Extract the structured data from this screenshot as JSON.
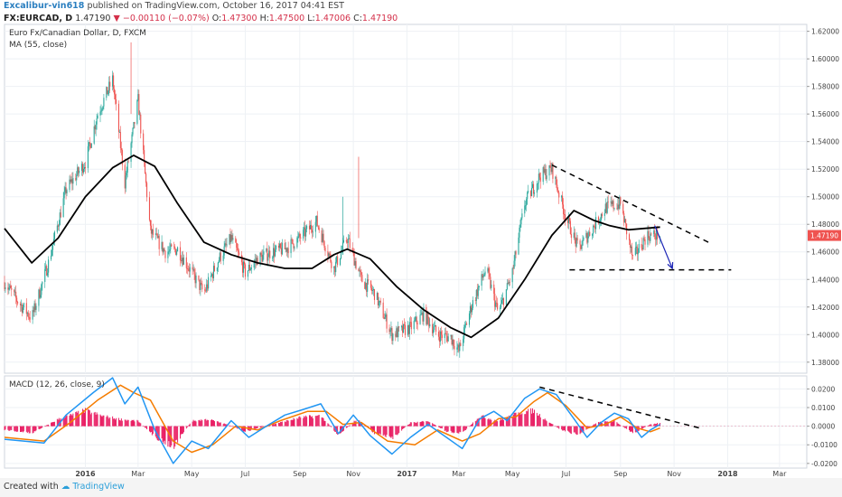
{
  "header": {
    "author": "Excalibur-vin618",
    "published_text": "published on TradingView.com, October 16, 2017 04:41 EST",
    "symbol": "FX:EURCAD, D",
    "last": "1.47190",
    "change_arrow": "▼",
    "change": "−0.00110 (−0.07%)",
    "o_label": "O:",
    "o_value": "1.47300",
    "h_label": "H:",
    "h_value": "1.47500",
    "l_label": "L:",
    "l_value": "1.47006",
    "c_label": "C:",
    "c_value": "1.47190"
  },
  "footer": {
    "created_with": "Created with",
    "brand": "TradingView"
  },
  "colors": {
    "up": "#26a69a",
    "down": "#ef5350",
    "ma": "#000000",
    "macd": "#2196f3",
    "signal": "#f57c00",
    "hist": "#e91e63",
    "price_tag": "#ef5350",
    "arrow": "#1a23b5"
  },
  "chart_data": [
    {
      "type": "candlestick",
      "title": "Euro Fx/Canadian Dollar, D, FXCM",
      "indicator_label": "MA (55, close)",
      "last_price_label": "1.47190",
      "ylim": [
        1.372,
        1.625
      ],
      "y_ticks": [
        "1.62000",
        "1.60000",
        "1.58000",
        "1.56000",
        "1.54000",
        "1.52000",
        "1.50000",
        "1.48000",
        "1.46000",
        "1.44000",
        "1.42000",
        "1.40000",
        "1.38000"
      ],
      "x_ticks": [
        "2016",
        "Mar",
        "May",
        "Jul",
        "Sep",
        "Nov",
        "2017",
        "Mar",
        "May",
        "Jul",
        "Sep",
        "Nov",
        "2018",
        "Mar"
      ],
      "price_path": [
        [
          "2015-10-01",
          1.438
        ],
        [
          "2015-10-15",
          1.425
        ],
        [
          "2015-11-01",
          1.412
        ],
        [
          "2015-11-20",
          1.452
        ],
        [
          "2015-12-10",
          1.505
        ],
        [
          "2016-01-01",
          1.525
        ],
        [
          "2016-01-15",
          1.56
        ],
        [
          "2016-02-01",
          1.585
        ],
        [
          "2016-02-15",
          1.51
        ],
        [
          "2016-03-01",
          1.57
        ],
        [
          "2016-03-15",
          1.475
        ],
        [
          "2016-04-01",
          1.46
        ],
        [
          "2016-04-15",
          1.462
        ],
        [
          "2016-05-01",
          1.445
        ],
        [
          "2016-05-15",
          1.43
        ],
        [
          "2016-06-01",
          1.455
        ],
        [
          "2016-06-15",
          1.47
        ],
        [
          "2016-07-01",
          1.445
        ],
        [
          "2016-07-15",
          1.455
        ],
        [
          "2016-08-01",
          1.46
        ],
        [
          "2016-08-15",
          1.462
        ],
        [
          "2016-09-01",
          1.47
        ],
        [
          "2016-09-20",
          1.482
        ],
        [
          "2016-10-10",
          1.448
        ],
        [
          "2016-10-25",
          1.47
        ],
        [
          "2016-11-10",
          1.44
        ],
        [
          "2016-11-25",
          1.43
        ],
        [
          "2016-12-15",
          1.4
        ],
        [
          "2017-01-05",
          1.405
        ],
        [
          "2017-01-20",
          1.415
        ],
        [
          "2017-02-05",
          1.4
        ],
        [
          "2017-02-20",
          1.398
        ],
        [
          "2017-03-01",
          1.388
        ],
        [
          "2017-03-15",
          1.42
        ],
        [
          "2017-04-01",
          1.448
        ],
        [
          "2017-04-15",
          1.415
        ],
        [
          "2017-05-01",
          1.445
        ],
        [
          "2017-05-15",
          1.495
        ],
        [
          "2017-06-01",
          1.515
        ],
        [
          "2017-06-15",
          1.52
        ],
        [
          "2017-07-01",
          1.485
        ],
        [
          "2017-07-15",
          1.462
        ],
        [
          "2017-08-01",
          1.478
        ],
        [
          "2017-08-15",
          1.492
        ],
        [
          "2017-09-01",
          1.495
        ],
        [
          "2017-09-15",
          1.455
        ],
        [
          "2017-10-01",
          1.472
        ],
        [
          "2017-10-16",
          1.4719
        ]
      ],
      "ma_path": [
        [
          "2015-10-01",
          1.477
        ],
        [
          "2015-11-01",
          1.452
        ],
        [
          "2015-12-01",
          1.47
        ],
        [
          "2016-01-01",
          1.5
        ],
        [
          "2016-02-01",
          1.521
        ],
        [
          "2016-02-25",
          1.53
        ],
        [
          "2016-03-20",
          1.522
        ],
        [
          "2016-04-15",
          1.495
        ],
        [
          "2016-05-15",
          1.467
        ],
        [
          "2016-06-15",
          1.458
        ],
        [
          "2016-07-15",
          1.452
        ],
        [
          "2016-08-15",
          1.448
        ],
        [
          "2016-09-15",
          1.448
        ],
        [
          "2016-10-10",
          1.458
        ],
        [
          "2016-10-25",
          1.462
        ],
        [
          "2016-11-20",
          1.455
        ],
        [
          "2016-12-20",
          1.435
        ],
        [
          "2017-01-20",
          1.418
        ],
        [
          "2017-02-20",
          1.405
        ],
        [
          "2017-03-15",
          1.398
        ],
        [
          "2017-04-15",
          1.412
        ],
        [
          "2017-05-15",
          1.44
        ],
        [
          "2017-06-15",
          1.472
        ],
        [
          "2017-07-10",
          1.49
        ],
        [
          "2017-08-01",
          1.483
        ],
        [
          "2017-08-20",
          1.479
        ],
        [
          "2017-09-10",
          1.476
        ],
        [
          "2017-10-16",
          1.478
        ]
      ],
      "annotations": {
        "resistance_line": [
          [
            "2017-06-15",
            1.523
          ],
          [
            "2017-12-10",
            1.467
          ]
        ],
        "support_line": [
          [
            "2017-07-05",
            1.447
          ],
          [
            "2018-01-05",
            1.447
          ]
        ],
        "arrow": [
          [
            "2017-10-10",
            1.479
          ],
          [
            "2017-10-30",
            1.448
          ]
        ]
      }
    },
    {
      "type": "macd",
      "title": "MACD (12, 26, close, 9)",
      "ylim": [
        -0.0225,
        0.027
      ],
      "y_ticks": [
        "0.0200",
        "0.0100",
        "0.0000",
        "-0.0100",
        "-0.0200"
      ],
      "macd_path": [
        [
          "2015-10-01",
          -0.007
        ],
        [
          "2015-11-15",
          -0.009
        ],
        [
          "2015-12-10",
          0.006
        ],
        [
          "2016-01-10",
          0.018
        ],
        [
          "2016-02-01",
          0.026
        ],
        [
          "2016-02-15",
          0.012
        ],
        [
          "2016-03-01",
          0.021
        ],
        [
          "2016-03-20",
          -0.002
        ],
        [
          "2016-04-10",
          -0.02
        ],
        [
          "2016-05-01",
          -0.008
        ],
        [
          "2016-05-20",
          -0.012
        ],
        [
          "2016-06-15",
          0.003
        ],
        [
          "2016-07-05",
          -0.006
        ],
        [
          "2016-07-25",
          0.0
        ],
        [
          "2016-08-15",
          0.006
        ],
        [
          "2016-09-05",
          0.009
        ],
        [
          "2016-09-25",
          0.012
        ],
        [
          "2016-10-15",
          -0.004
        ],
        [
          "2016-11-01",
          0.006
        ],
        [
          "2016-11-20",
          -0.005
        ],
        [
          "2016-12-15",
          -0.015
        ],
        [
          "2017-01-05",
          -0.006
        ],
        [
          "2017-01-25",
          0.001
        ],
        [
          "2017-02-15",
          -0.006
        ],
        [
          "2017-03-05",
          -0.012
        ],
        [
          "2017-03-25",
          0.004
        ],
        [
          "2017-04-10",
          0.008
        ],
        [
          "2017-04-25",
          0.003
        ],
        [
          "2017-05-15",
          0.015
        ],
        [
          "2017-06-01",
          0.02
        ],
        [
          "2017-06-20",
          0.017
        ],
        [
          "2017-07-10",
          0.004
        ],
        [
          "2017-07-25",
          -0.006
        ],
        [
          "2017-08-10",
          0.002
        ],
        [
          "2017-08-25",
          0.007
        ],
        [
          "2017-09-10",
          0.004
        ],
        [
          "2017-09-25",
          -0.006
        ],
        [
          "2017-10-05",
          -0.002
        ],
        [
          "2017-10-16",
          0.001
        ]
      ],
      "signal_path": [
        [
          "2015-10-01",
          -0.006
        ],
        [
          "2015-11-15",
          -0.008
        ],
        [
          "2015-12-15",
          0.002
        ],
        [
          "2016-01-15",
          0.014
        ],
        [
          "2016-02-10",
          0.022
        ],
        [
          "2016-02-25",
          0.018
        ],
        [
          "2016-03-15",
          0.014
        ],
        [
          "2016-04-10",
          -0.008
        ],
        [
          "2016-05-01",
          -0.014
        ],
        [
          "2016-05-25",
          -0.01
        ],
        [
          "2016-06-20",
          0.0
        ],
        [
          "2016-07-15",
          -0.002
        ],
        [
          "2016-08-10",
          0.003
        ],
        [
          "2016-09-10",
          0.008
        ],
        [
          "2016-10-01",
          0.008
        ],
        [
          "2016-10-20",
          0.001
        ],
        [
          "2016-11-10",
          0.002
        ],
        [
          "2016-12-10",
          -0.008
        ],
        [
          "2017-01-10",
          -0.01
        ],
        [
          "2017-02-05",
          -0.002
        ],
        [
          "2017-03-05",
          -0.008
        ],
        [
          "2017-03-25",
          -0.004
        ],
        [
          "2017-04-15",
          0.004
        ],
        [
          "2017-05-05",
          0.005
        ],
        [
          "2017-05-25",
          0.013
        ],
        [
          "2017-06-10",
          0.018
        ],
        [
          "2017-07-01",
          0.011
        ],
        [
          "2017-07-25",
          -0.001
        ],
        [
          "2017-08-15",
          0.001
        ],
        [
          "2017-09-01",
          0.005
        ],
        [
          "2017-09-20",
          -0.001
        ],
        [
          "2017-10-05",
          -0.003
        ],
        [
          "2017-10-16",
          -0.001
        ]
      ],
      "histogram_envelope": [
        [
          "2015-10-01",
          -0.002
        ],
        [
          "2015-11-01",
          -0.004
        ],
        [
          "2015-12-01",
          0.004
        ],
        [
          "2016-01-01",
          0.009
        ],
        [
          "2016-01-20",
          0.006
        ],
        [
          "2016-02-10",
          0.004
        ],
        [
          "2016-03-01",
          0.003
        ],
        [
          "2016-03-20",
          -0.006
        ],
        [
          "2016-04-10",
          -0.012
        ],
        [
          "2016-05-01",
          0.003
        ],
        [
          "2016-05-20",
          0.004
        ],
        [
          "2016-06-10",
          0.001
        ],
        [
          "2016-07-01",
          -0.003
        ],
        [
          "2016-08-01",
          0.001
        ],
        [
          "2016-09-01",
          0.005
        ],
        [
          "2016-09-25",
          0.006
        ],
        [
          "2016-10-15",
          -0.005
        ],
        [
          "2016-11-05",
          0.004
        ],
        [
          "2016-11-25",
          -0.004
        ],
        [
          "2016-12-15",
          -0.007
        ],
        [
          "2017-01-05",
          0.002
        ],
        [
          "2017-01-25",
          0.003
        ],
        [
          "2017-02-15",
          -0.003
        ],
        [
          "2017-03-05",
          -0.004
        ],
        [
          "2017-03-25",
          0.006
        ],
        [
          "2017-04-15",
          0.003
        ],
        [
          "2017-05-10",
          0.008
        ],
        [
          "2017-05-25",
          0.009
        ],
        [
          "2017-06-10",
          0.003
        ],
        [
          "2017-06-25",
          -0.002
        ],
        [
          "2017-07-15",
          -0.005
        ],
        [
          "2017-08-05",
          0.002
        ],
        [
          "2017-08-25",
          0.003
        ],
        [
          "2017-09-15",
          -0.004
        ],
        [
          "2017-10-05",
          0.001
        ],
        [
          "2017-10-16",
          0.002
        ]
      ],
      "annotations": {
        "trend_line": [
          [
            "2017-06-01",
            0.021
          ],
          [
            "2017-11-30",
            -0.001
          ]
        ]
      }
    }
  ]
}
